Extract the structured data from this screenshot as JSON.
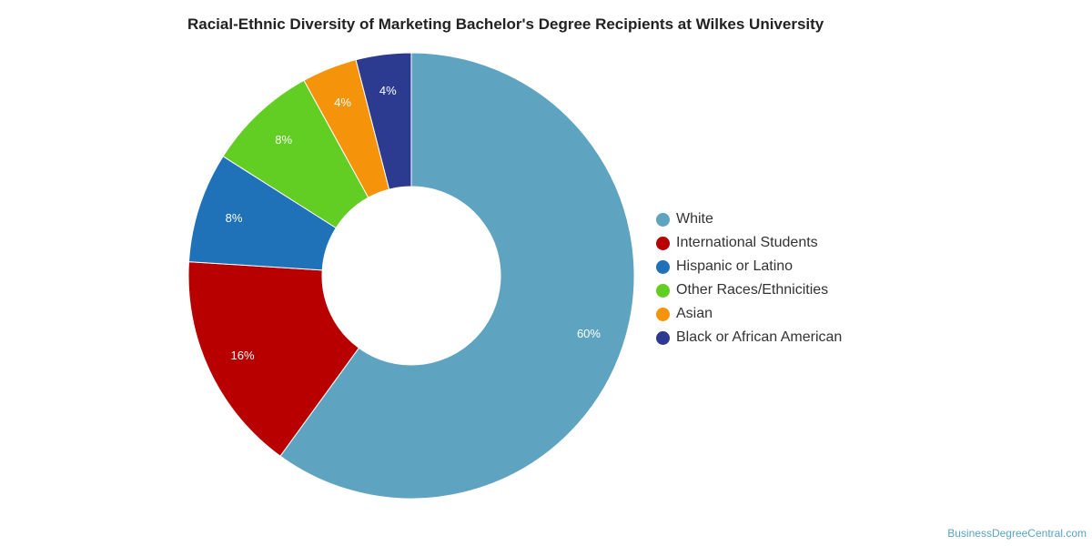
{
  "chart_data": {
    "type": "pie",
    "subtype": "donut",
    "title": "Racial-Ethnic Diversity of Marketing Bachelor's Degree Recipients at Wilkes University",
    "legend_position": "right",
    "categories": [
      "White",
      "International Students",
      "Hispanic or Latino",
      "Other Races/Ethnicities",
      "Asian",
      "Black or African American"
    ],
    "values": [
      60,
      16,
      8,
      8,
      4,
      4
    ],
    "labels": [
      "60%",
      "16%",
      "8%",
      "8%",
      "4%",
      "4%"
    ],
    "colors": [
      "#5ea3bf",
      "#b80000",
      "#1f72b8",
      "#62cd23",
      "#f5940a",
      "#2c3a90"
    ]
  },
  "credit": "BusinessDegreeCentral.com"
}
